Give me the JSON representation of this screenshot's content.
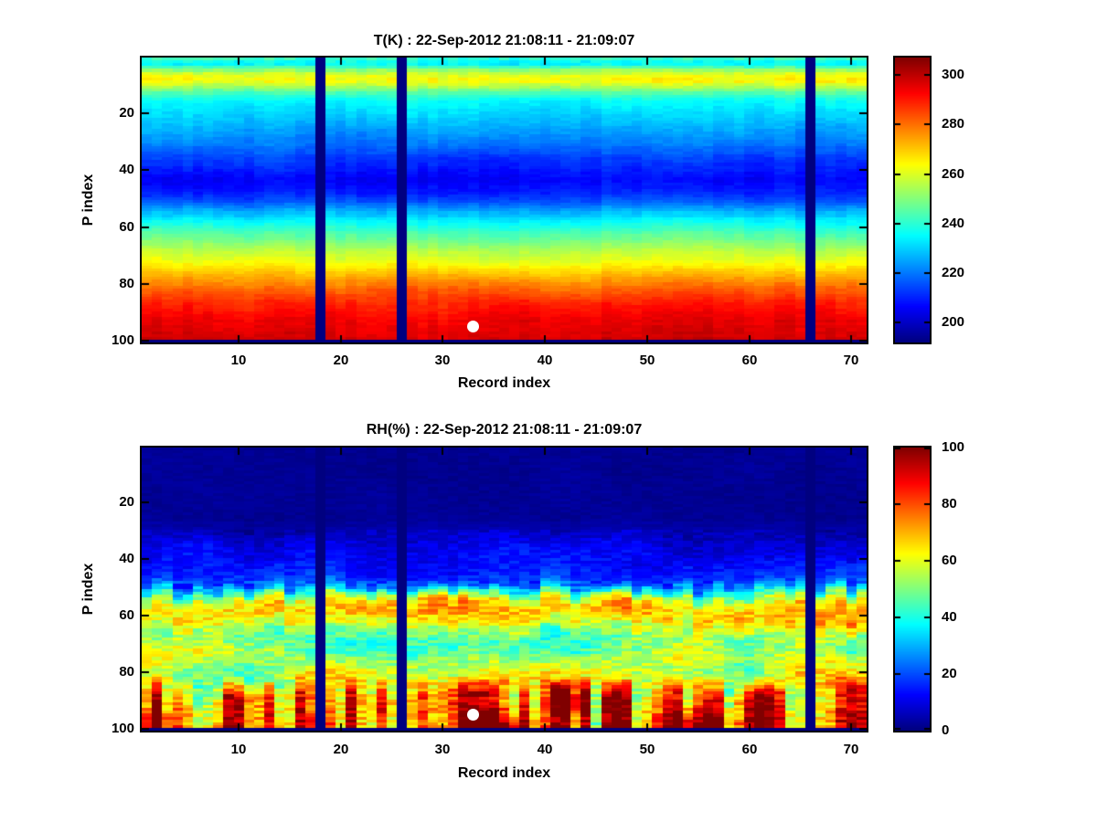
{
  "figure": {
    "background": "#ffffff",
    "text_color": "#000000"
  },
  "chart_data": [
    {
      "type": "heatmap",
      "title": "T(K) : 22-Sep-2012 21:08:11 - 21:09:07",
      "xlabel": "Record index",
      "ylabel": "P index",
      "x_range": [
        1,
        71
      ],
      "y_range": [
        1,
        100
      ],
      "x_ticks": [
        10,
        20,
        30,
        40,
        50,
        60,
        70
      ],
      "y_ticks": [
        20,
        40,
        60,
        80,
        100
      ],
      "colormap": "jet",
      "clim": [
        192,
        307
      ],
      "colorbar_ticks": [
        200,
        220,
        240,
        260,
        280,
        300
      ],
      "missing_records": [
        18,
        26,
        66
      ],
      "missing_rows": [
        100
      ],
      "marker": {
        "record": 33,
        "p": 95,
        "color": "#ffffff"
      },
      "p_profile": [
        241,
        236,
        235,
        243,
        252,
        258,
        262,
        264,
        263,
        259,
        254,
        249,
        244,
        240,
        237,
        235,
        234,
        233,
        232,
        231,
        230,
        229,
        228,
        227,
        226,
        225,
        224,
        223,
        222,
        221,
        220,
        218,
        217,
        216,
        214,
        213,
        212,
        211,
        210,
        209,
        208,
        207,
        206,
        206,
        207,
        208,
        209,
        210,
        212,
        214,
        216,
        219,
        222,
        225,
        228,
        230,
        233,
        235,
        237,
        239,
        241,
        243,
        245,
        247,
        249,
        251,
        253,
        255,
        257,
        258,
        260,
        262,
        264,
        266,
        268,
        270,
        272,
        274,
        276,
        278,
        280,
        282,
        283,
        285,
        286,
        288,
        289,
        290,
        291,
        292,
        293,
        294,
        295,
        295,
        296,
        296,
        297,
        297,
        298,
        null
      ]
    },
    {
      "type": "heatmap",
      "title": "RH(%) : 22-Sep-2012 21:08:11 - 21:09:07",
      "xlabel": "Record index",
      "ylabel": "P index",
      "x_range": [
        1,
        71
      ],
      "y_range": [
        1,
        100
      ],
      "x_ticks": [
        10,
        20,
        30,
        40,
        50,
        60,
        70
      ],
      "y_ticks": [
        20,
        40,
        60,
        80,
        100
      ],
      "colormap": "jet",
      "clim": [
        0,
        100
      ],
      "colorbar_ticks": [
        0,
        20,
        40,
        60,
        80,
        100
      ],
      "missing_records": [
        18,
        26,
        66
      ],
      "missing_rows": [
        100
      ],
      "marker": {
        "record": 33,
        "p": 95,
        "color": "#ffffff"
      },
      "p_profile": [
        2,
        2,
        2,
        2,
        2,
        2,
        2,
        2,
        2,
        2,
        2,
        2,
        2,
        2,
        2,
        2,
        2,
        2,
        2,
        2,
        2,
        2,
        2,
        2,
        2,
        2,
        3,
        3,
        4,
        5,
        6,
        7,
        8,
        9,
        10,
        11,
        11,
        12,
        12,
        13,
        13,
        14,
        14,
        15,
        16,
        17,
        18,
        20,
        24,
        30,
        36,
        43,
        50,
        56,
        61,
        65,
        67,
        68,
        68,
        67,
        65,
        63,
        60,
        57,
        54,
        52,
        50,
        49,
        48,
        48,
        49,
        50,
        51,
        52,
        53,
        54,
        54,
        55,
        55,
        56,
        57,
        58,
        58,
        59,
        60,
        60,
        61,
        62,
        63,
        64,
        65,
        66,
        67,
        68,
        69,
        70,
        71,
        72,
        73,
        null
      ],
      "column_bottom_intensity": [
        0.55,
        0.95,
        0.45,
        0.6,
        0.5,
        0.3,
        0.35,
        0.45,
        0.8,
        0.75,
        0.5,
        0.45,
        0.65,
        0.3,
        0.35,
        0.7,
        0.5,
        0.45,
        0.45,
        0.3,
        0.75,
        0.4,
        0.35,
        0.65,
        0.4,
        0.45,
        0.5,
        0.7,
        0.55,
        0.6,
        0.75,
        0.9,
        0.95,
        0.95,
        0.9,
        0.7,
        0.5,
        0.8,
        0.4,
        0.6,
        0.85,
        0.9,
        0.6,
        0.85,
        0.25,
        0.8,
        0.9,
        0.85,
        0.3,
        0.4,
        0.55,
        0.8,
        0.85,
        0.5,
        0.75,
        0.85,
        0.8,
        0.35,
        0.5,
        0.8,
        0.9,
        0.85,
        0.7,
        0.35,
        0.3,
        0.45,
        0.45,
        0.5,
        0.75,
        0.9,
        0.85
      ]
    }
  ]
}
